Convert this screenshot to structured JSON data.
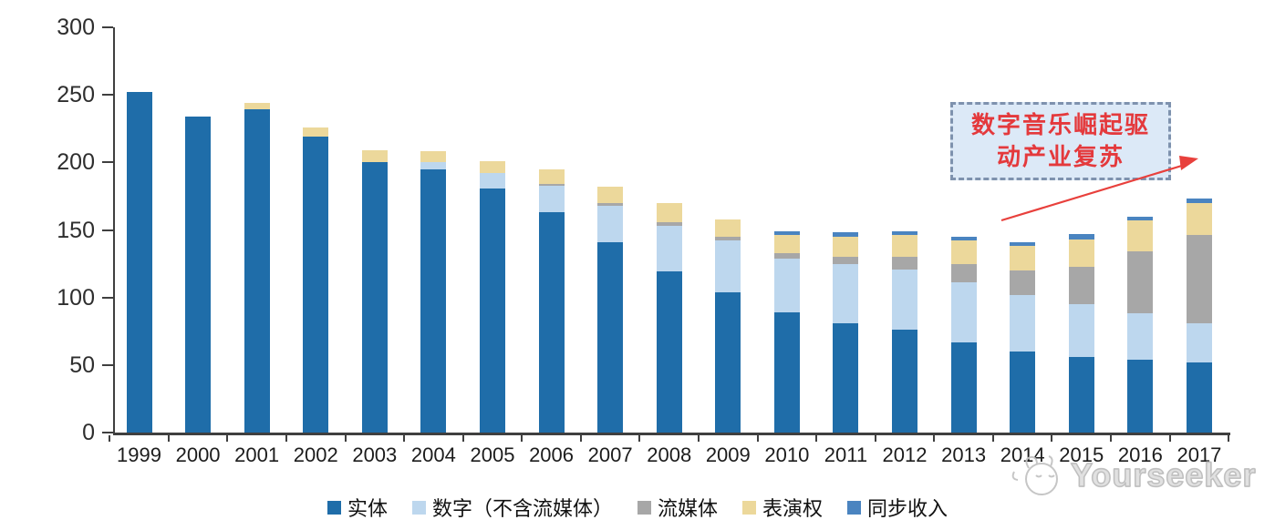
{
  "chart_data": {
    "type": "bar",
    "stacked": true,
    "categories": [
      "1999",
      "2000",
      "2001",
      "2002",
      "2003",
      "2004",
      "2005",
      "2006",
      "2007",
      "2008",
      "2009",
      "2010",
      "2011",
      "2012",
      "2013",
      "2014",
      "2015",
      "2016",
      "2017"
    ],
    "series": [
      {
        "name": "实体",
        "color": "#1f6da9",
        "values": [
          252,
          234,
          239,
          219,
          200,
          195,
          181,
          163,
          141,
          119,
          104,
          89,
          81,
          76,
          67,
          60,
          56,
          54,
          52
        ]
      },
      {
        "name": "数字（不含流媒体）",
        "color": "#bdd7ee",
        "values": [
          0,
          0,
          0,
          0,
          0,
          5,
          11,
          20,
          27,
          34,
          38,
          40,
          44,
          45,
          44,
          42,
          39,
          34,
          29
        ]
      },
      {
        "name": "流媒体",
        "color": "#a7a7a7",
        "values": [
          0,
          0,
          0,
          0,
          0,
          0,
          0,
          1,
          2,
          3,
          3,
          4,
          5,
          9,
          14,
          18,
          28,
          46,
          65
        ]
      },
      {
        "name": "表演权",
        "color": "#ecd89b",
        "values": [
          0,
          0,
          5,
          7,
          9,
          8,
          9,
          11,
          12,
          14,
          13,
          13,
          15,
          16,
          17,
          18,
          20,
          23,
          24
        ]
      },
      {
        "name": "同步收入",
        "color": "#4a84c0",
        "values": [
          0,
          0,
          0,
          0,
          0,
          0,
          0,
          0,
          0,
          0,
          0,
          3,
          3,
          3,
          3,
          3,
          4,
          3,
          3
        ]
      }
    ],
    "ylim": [
      0,
      300
    ],
    "yticks": [
      0,
      50,
      100,
      150,
      200,
      250,
      300
    ],
    "legend_position": "bottom",
    "grid": false,
    "title": ""
  },
  "annotation": {
    "line1": "数字音乐崛起驱",
    "line2": "动产业复苏",
    "text_color": "#e4393c",
    "box_fill": "#dce9f7",
    "border_color": "#7e92ae",
    "arrow_color": "#e8403c"
  },
  "watermark": {
    "text": "Yourseeker"
  },
  "icons": {
    "watermark_logo": "yourseeker-logo-icon"
  }
}
